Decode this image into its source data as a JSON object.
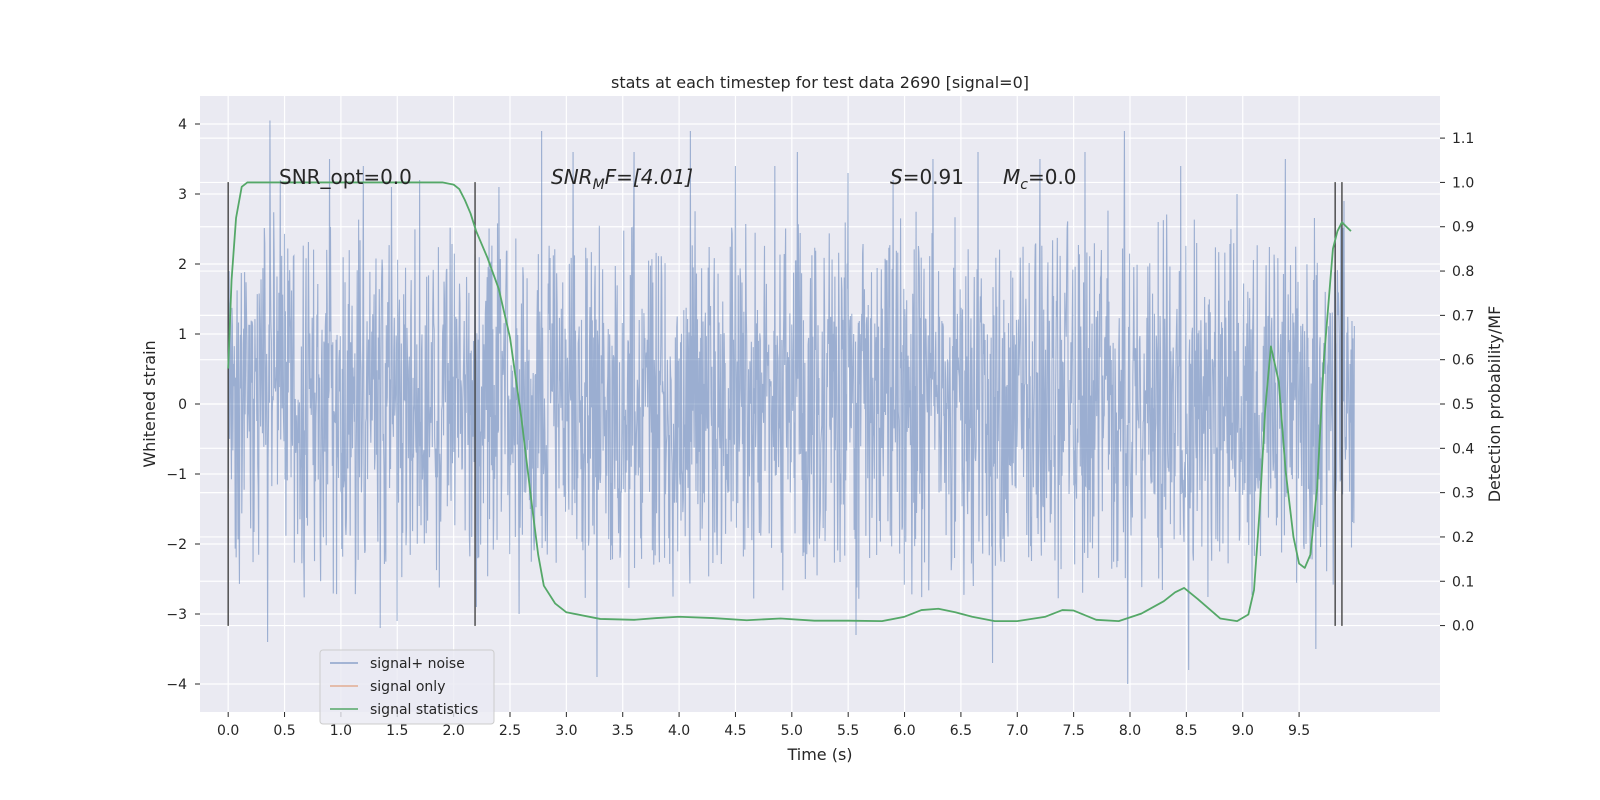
{
  "chart_data": {
    "type": "line",
    "title": "stats at each timestep for test data 2690 [signal=0]",
    "xlabel": "Time (s)",
    "ylabel": "Whitened strain",
    "ylabel_right": "Detection probability/MF",
    "xlim": [
      -0.25,
      10.75
    ],
    "ylim": [
      -4.4,
      4.4
    ],
    "ylim_right": [
      -0.195,
      1.195
    ],
    "x_ticks": [
      "0.0",
      "0.5",
      "1.0",
      "1.5",
      "2.0",
      "2.5",
      "3.0",
      "3.5",
      "4.0",
      "4.5",
      "5.0",
      "5.5",
      "6.0",
      "6.5",
      "7.0",
      "7.5",
      "8.0",
      "8.5",
      "9.0",
      "9.5"
    ],
    "y_ticks": [
      "−4",
      "−3",
      "−2",
      "−1",
      "0",
      "1",
      "2",
      "3",
      "4"
    ],
    "y_ticks_right": [
      "0.0",
      "0.1",
      "0.2",
      "0.3",
      "0.4",
      "0.5",
      "0.6",
      "0.7",
      "0.8",
      "0.9",
      "1.0",
      "1.1"
    ],
    "grid": true,
    "legend_position": "lower-left",
    "annotations": {
      "snr_opt": "SNR_opt=0.0",
      "snr_mf_base": "SNR",
      "snr_mf_sub": "M",
      "snr_mf_rest": "F=[4.01]",
      "s_sym": "S",
      "s_val": "=0.91",
      "mc_sym": "M",
      "mc_sub": "c",
      "mc_val": "=0.0"
    },
    "vlines": [
      0.0,
      2.19,
      9.82,
      9.88
    ],
    "series": [
      {
        "name": "signal+ noise",
        "color": "#4c72b0",
        "axis": "left",
        "x_range": [
          0.0,
          9.99
        ],
        "envelope": 1.3,
        "peaks": [
          [
            0.37,
            4.05
          ],
          [
            0.35,
            -3.4
          ],
          [
            0.46,
            3.2
          ],
          [
            0.9,
            3.5
          ],
          [
            1.2,
            3.4
          ],
          [
            1.45,
            3.1
          ],
          [
            1.7,
            3.2
          ],
          [
            1.35,
            -3.2
          ],
          [
            1.5,
            -3.1
          ],
          [
            2.2,
            -2.9
          ],
          [
            2.4,
            3.1
          ],
          [
            2.78,
            3.9
          ],
          [
            2.58,
            -3.0
          ],
          [
            3.06,
            3.6
          ],
          [
            3.27,
            -3.9
          ],
          [
            3.6,
            3.6
          ],
          [
            4.1,
            3.9
          ],
          [
            4.5,
            3.4
          ],
          [
            4.85,
            3.4
          ],
          [
            5.05,
            3.6
          ],
          [
            5.5,
            3.3
          ],
          [
            5.57,
            -3.3
          ],
          [
            5.9,
            3.2
          ],
          [
            6.25,
            3.5
          ],
          [
            6.65,
            3.6
          ],
          [
            6.78,
            -3.7
          ],
          [
            7.2,
            3.5
          ],
          [
            7.6,
            3.6
          ],
          [
            7.95,
            3.9
          ],
          [
            7.98,
            -4.0
          ],
          [
            8.45,
            3.4
          ],
          [
            8.52,
            -3.8
          ],
          [
            8.95,
            3.0
          ],
          [
            9.38,
            3.5
          ],
          [
            9.65,
            -3.5
          ],
          [
            9.9,
            2.9
          ]
        ]
      },
      {
        "name": "signal only",
        "color": "#dd8452",
        "axis": "left"
      },
      {
        "name": "signal statistics",
        "color": "#55a868",
        "axis": "right",
        "x": [
          0.0,
          0.03,
          0.07,
          0.12,
          0.17,
          0.25,
          0.4,
          0.8,
          1.2,
          1.6,
          1.9,
          2.0,
          2.05,
          2.1,
          2.15,
          2.2,
          2.3,
          2.4,
          2.5,
          2.6,
          2.7,
          2.75,
          2.8,
          2.9,
          3.0,
          3.3,
          3.6,
          3.8,
          4.0,
          4.3,
          4.6,
          4.9,
          5.2,
          5.5,
          5.8,
          6.0,
          6.15,
          6.3,
          6.45,
          6.6,
          6.8,
          7.0,
          7.25,
          7.4,
          7.5,
          7.7,
          7.9,
          8.1,
          8.3,
          8.4,
          8.48,
          8.6,
          8.8,
          8.95,
          9.05,
          9.1,
          9.15,
          9.2,
          9.25,
          9.32,
          9.38,
          9.45,
          9.5,
          9.55,
          9.6,
          9.66,
          9.72,
          9.8,
          9.84,
          9.88,
          9.92,
          9.96
        ],
        "y": [
          0.58,
          0.78,
          0.92,
          0.99,
          1.0,
          1.0,
          1.0,
          1.0,
          1.0,
          1.0,
          1.0,
          0.995,
          0.985,
          0.96,
          0.93,
          0.89,
          0.83,
          0.76,
          0.65,
          0.47,
          0.26,
          0.16,
          0.09,
          0.05,
          0.03,
          0.015,
          0.013,
          0.017,
          0.02,
          0.017,
          0.012,
          0.016,
          0.011,
          0.011,
          0.01,
          0.02,
          0.035,
          0.038,
          0.03,
          0.02,
          0.01,
          0.01,
          0.02,
          0.035,
          0.034,
          0.013,
          0.01,
          0.027,
          0.055,
          0.075,
          0.085,
          0.06,
          0.016,
          0.01,
          0.025,
          0.08,
          0.26,
          0.49,
          0.63,
          0.55,
          0.35,
          0.2,
          0.14,
          0.13,
          0.16,
          0.31,
          0.6,
          0.85,
          0.89,
          0.91,
          0.9,
          0.89
        ]
      }
    ]
  }
}
